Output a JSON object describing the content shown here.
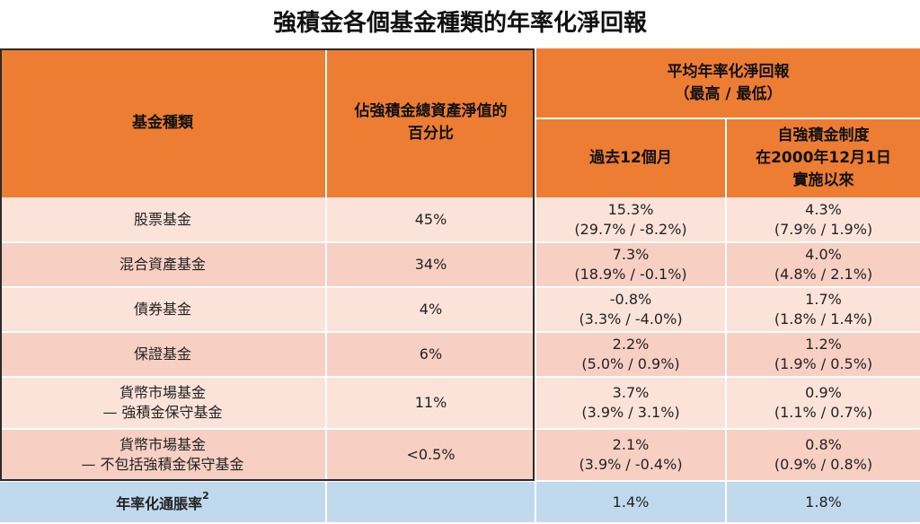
{
  "title": "強積金各個基金種類的年率化淨回報",
  "headers": {
    "fund_type": "基金種類",
    "pct_line1": "佔強積金總資產淨值的",
    "pct_line2": "百分比",
    "annual_line1": "平均年率化淨回報",
    "annual_line2": "（最高 / 最低）",
    "past12": "過去12個月",
    "since_line1": "自強積金制度",
    "since_line2": "在2000年12月1日",
    "since_line3": "實施以來"
  },
  "rows": [
    {
      "name1": "股票基金",
      "name2": "",
      "pct": "45%",
      "p12_avg": "15.3%",
      "p12_range": "(29.7% / -8.2%)",
      "si_avg": "4.3%",
      "si_range": "(7.9% / 1.9%)"
    },
    {
      "name1": "混合資產基金",
      "name2": "",
      "pct": "34%",
      "p12_avg": "7.3%",
      "p12_range": "(18.9% / -0.1%)",
      "si_avg": "4.0%",
      "si_range": "(4.8% / 2.1%)"
    },
    {
      "name1": "債券基金",
      "name2": "",
      "pct": "4%",
      "p12_avg": "-0.8%",
      "p12_range": "(3.3% / -4.0%)",
      "si_avg": "1.7%",
      "si_range": "(1.8% / 1.4%)"
    },
    {
      "name1": "保證基金",
      "name2": "",
      "pct": "6%",
      "p12_avg": "2.2%",
      "p12_range": "(5.0% / 0.9%)",
      "si_avg": "1.2%",
      "si_range": "(1.9% / 0.5%)"
    },
    {
      "name1": "貨幣市場基金",
      "name2": "— 強積金保守基金",
      "pct": "11%",
      "p12_avg": "3.7%",
      "p12_range": "(3.9% / 3.1%)",
      "si_avg": "0.9%",
      "si_range": "(1.1% / 0.7%)"
    },
    {
      "name1": "貨幣市場基金",
      "name2": "— 不包括強積金保守基金",
      "pct": "<0.5%",
      "p12_avg": "2.1%",
      "p12_range": "(3.9% / -0.4%)",
      "si_avg": "0.8%",
      "si_range": "(0.9% / 0.8%)"
    }
  ],
  "inflation": {
    "label": "年率化通脹率",
    "footnote": "2",
    "past12": "1.4%",
    "since": "1.8%"
  },
  "colors": {
    "header": "#ec7d33",
    "row_light": "#fbe3da",
    "row_dark": "#f7d0c3",
    "inflation_row": "#c0d9ed"
  }
}
